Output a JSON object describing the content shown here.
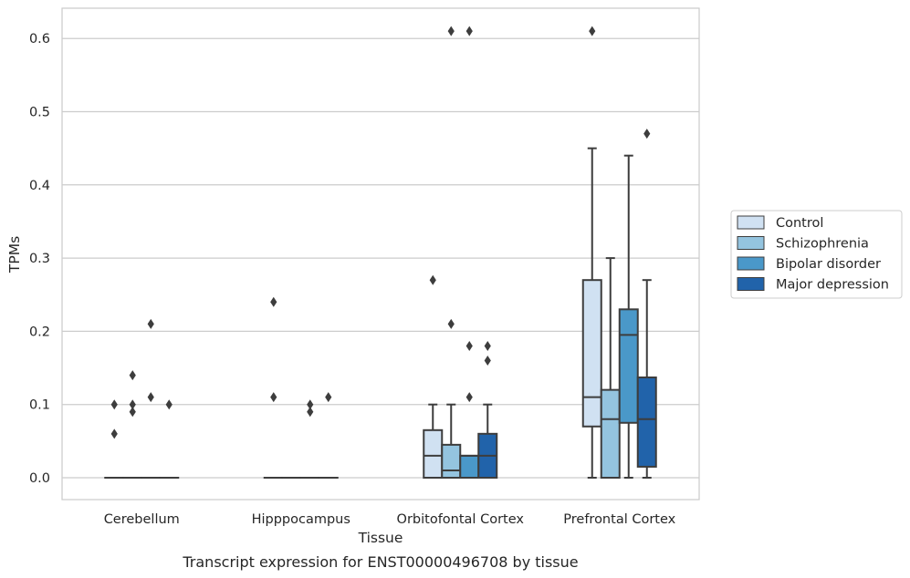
{
  "chart_data": {
    "type": "box",
    "title": "",
    "caption": "Transcript expression for ENST00000496708 by tissue",
    "xlabel": "Tissue",
    "ylabel": "TPMs",
    "ylim": [
      -0.03,
      0.64
    ],
    "yticks": [
      "0.0",
      "0.1",
      "0.2",
      "0.3",
      "0.4",
      "0.5",
      "0.6"
    ],
    "grid": true,
    "legend_position": "right",
    "categories": [
      "Cerebellum",
      "Hipppocampus",
      "Orbitofontal Cortex",
      "Prefrontal Cortex"
    ],
    "series": [
      {
        "name": "Control",
        "color": "#d0e1f2",
        "boxes": [
          {
            "q1": 0,
            "median": 0,
            "q3": 0,
            "whisker_low": 0,
            "whisker_high": 0,
            "outliers": [
              0.06,
              0.1
            ]
          },
          {
            "q1": 0,
            "median": 0,
            "q3": 0,
            "whisker_low": 0,
            "whisker_high": 0,
            "outliers": [
              0.11,
              0.24
            ]
          },
          {
            "q1": 0,
            "median": 0.03,
            "q3": 0.065,
            "whisker_low": 0,
            "whisker_high": 0.1,
            "outliers": [
              0.27
            ]
          },
          {
            "q1": 0.07,
            "median": 0.11,
            "q3": 0.27,
            "whisker_low": 0,
            "whisker_high": 0.45,
            "outliers": [
              0.61
            ]
          }
        ]
      },
      {
        "name": "Schizophrenia",
        "color": "#94c4df",
        "boxes": [
          {
            "q1": 0,
            "median": 0,
            "q3": 0,
            "whisker_low": 0,
            "whisker_high": 0,
            "outliers": [
              0.09,
              0.1,
              0.14
            ]
          },
          {
            "q1": 0,
            "median": 0,
            "q3": 0,
            "whisker_low": 0,
            "whisker_high": 0,
            "outliers": []
          },
          {
            "q1": 0,
            "median": 0.01,
            "q3": 0.045,
            "whisker_low": 0,
            "whisker_high": 0.1,
            "outliers": [
              0.21,
              0.61
            ]
          },
          {
            "q1": 0,
            "median": 0.08,
            "q3": 0.12,
            "whisker_low": 0,
            "whisker_high": 0.3,
            "outliers": []
          }
        ]
      },
      {
        "name": "Bipolar disorder",
        "color": "#4a98c9",
        "boxes": [
          {
            "q1": 0,
            "median": 0,
            "q3": 0,
            "whisker_low": 0,
            "whisker_high": 0,
            "outliers": [
              0.11,
              0.21
            ]
          },
          {
            "q1": 0,
            "median": 0,
            "q3": 0,
            "whisker_low": 0,
            "whisker_high": 0,
            "outliers": [
              0.09,
              0.1
            ]
          },
          {
            "q1": 0,
            "median": 0.03,
            "q3": 0.03,
            "whisker_low": 0,
            "whisker_high": 0.03,
            "outliers": [
              0.11,
              0.18,
              0.61
            ]
          },
          {
            "q1": 0.075,
            "median": 0.195,
            "q3": 0.23,
            "whisker_low": 0,
            "whisker_high": 0.44,
            "outliers": []
          }
        ]
      },
      {
        "name": "Major depression",
        "color": "#2163aa",
        "boxes": [
          {
            "q1": 0,
            "median": 0,
            "q3": 0,
            "whisker_low": 0,
            "whisker_high": 0,
            "outliers": [
              0.1
            ]
          },
          {
            "q1": 0,
            "median": 0,
            "q3": 0,
            "whisker_low": 0,
            "whisker_high": 0,
            "outliers": [
              0.11
            ]
          },
          {
            "q1": 0,
            "median": 0.03,
            "q3": 0.06,
            "whisker_low": 0,
            "whisker_high": 0.1,
            "outliers": [
              0.16,
              0.18
            ]
          },
          {
            "q1": 0.015,
            "median": 0.08,
            "q3": 0.137,
            "whisker_low": 0,
            "whisker_high": 0.27,
            "outliers": [
              0.47
            ]
          }
        ]
      }
    ]
  }
}
